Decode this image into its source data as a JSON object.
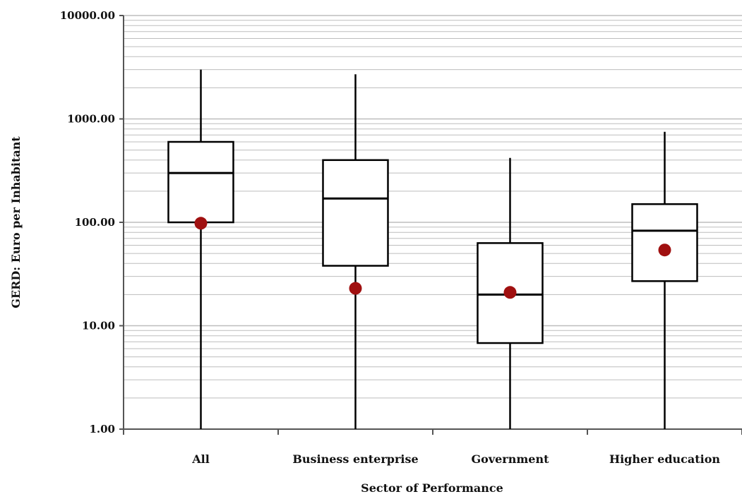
{
  "chart_data": {
    "type": "boxplot",
    "title": "",
    "xlabel": "Sector of Performance",
    "ylabel": "GERD: Euro per Inhabitant",
    "yscale": "log",
    "ylim": [
      1,
      10000
    ],
    "yticks": [
      1,
      10,
      100,
      1000,
      10000
    ],
    "ytick_labels": [
      "1.00",
      "10.00",
      "100.00",
      "1000.00",
      "10000.00"
    ],
    "grid": true,
    "legend": "none",
    "colors": {
      "box_fill": "#ffffff",
      "box_line": "#000000",
      "mean_marker": "#a01010",
      "grid": "#bdbdbd"
    },
    "categories": [
      "All",
      "Business enterprise",
      "Government",
      "Higher education"
    ],
    "boxes": [
      {
        "category": "All",
        "whisker_low": 1.0,
        "q1": 100,
        "median": 300,
        "q3": 600,
        "whisker_high": 3000,
        "mean": 98
      },
      {
        "category": "Business enterprise",
        "whisker_low": 1.0,
        "q1": 38,
        "median": 170,
        "q3": 400,
        "whisker_high": 2700,
        "mean": 23
      },
      {
        "category": "Government",
        "whisker_low": 1.0,
        "q1": 6.8,
        "median": 20,
        "q3": 63,
        "whisker_high": 420,
        "mean": 21
      },
      {
        "category": "Higher education",
        "whisker_low": 1.0,
        "q1": 27,
        "median": 83,
        "q3": 150,
        "whisker_high": 750,
        "mean": 54
      }
    ]
  }
}
